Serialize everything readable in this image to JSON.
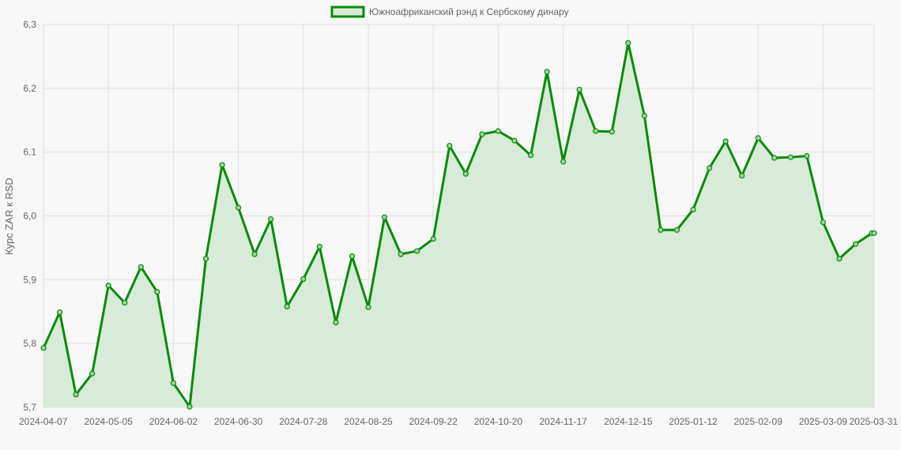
{
  "colors": {
    "background": "#f8f8f8",
    "line": "#0a8a0a",
    "fill": "#d8ead8",
    "grid": "#e0e0e0",
    "text": "#666666"
  },
  "chart_data": {
    "type": "area",
    "ylabel": "Курс ZAR к RSD",
    "ylim": [
      5.7,
      6.3
    ],
    "yticks": [
      "5,7",
      "5,8",
      "5,9",
      "6,0",
      "6,1",
      "6,2",
      "6,3"
    ],
    "ytick_values": [
      5.7,
      5.8,
      5.9,
      6.0,
      6.1,
      6.2,
      6.3
    ],
    "xticks": [
      "2024-04-07",
      "2024-05-05",
      "2024-06-02",
      "2024-06-30",
      "2024-07-28",
      "2024-08-25",
      "2024-09-22",
      "2024-10-20",
      "2024-11-17",
      "2024-12-15",
      "2025-01-12",
      "2025-02-09",
      "2025-03-09",
      "2025-03-31"
    ],
    "grid": true,
    "legend": "top-center",
    "series": [
      {
        "name": "Южноафриканский рэнд к Сербскому динару",
        "x": [
          "2024-04-07",
          "2024-04-14",
          "2024-04-21",
          "2024-04-28",
          "2024-05-05",
          "2024-05-12",
          "2024-05-19",
          "2024-05-26",
          "2024-06-02",
          "2024-06-09",
          "2024-06-16",
          "2024-06-23",
          "2024-06-30",
          "2024-07-07",
          "2024-07-14",
          "2024-07-21",
          "2024-07-28",
          "2024-08-04",
          "2024-08-11",
          "2024-08-18",
          "2024-08-25",
          "2024-09-01",
          "2024-09-08",
          "2024-09-15",
          "2024-09-22",
          "2024-09-29",
          "2024-10-06",
          "2024-10-13",
          "2024-10-20",
          "2024-10-27",
          "2024-11-03",
          "2024-11-10",
          "2024-11-17",
          "2024-11-24",
          "2024-12-01",
          "2024-12-08",
          "2024-12-15",
          "2024-12-22",
          "2024-12-29",
          "2025-01-05",
          "2025-01-12",
          "2025-01-19",
          "2025-01-26",
          "2025-02-02",
          "2025-02-09",
          "2025-02-16",
          "2025-02-23",
          "2025-03-02",
          "2025-03-09",
          "2025-03-16",
          "2025-03-23",
          "2025-03-30",
          "2025-03-31"
        ],
        "values": [
          5.793,
          5.849,
          5.72,
          5.753,
          5.891,
          5.864,
          5.92,
          5.881,
          5.738,
          5.701,
          5.933,
          6.08,
          6.013,
          5.94,
          5.995,
          5.858,
          5.901,
          5.952,
          5.833,
          5.937,
          5.857,
          5.998,
          5.94,
          5.945,
          5.964,
          6.11,
          6.066,
          6.128,
          6.133,
          6.118,
          6.095,
          6.226,
          6.085,
          6.198,
          6.133,
          6.132,
          6.271,
          6.157,
          5.978,
          5.978,
          6.01,
          6.075,
          6.117,
          6.063,
          6.122,
          6.091,
          6.092,
          6.094,
          5.99,
          5.933,
          5.956,
          5.973,
          5.973
        ]
      }
    ]
  }
}
